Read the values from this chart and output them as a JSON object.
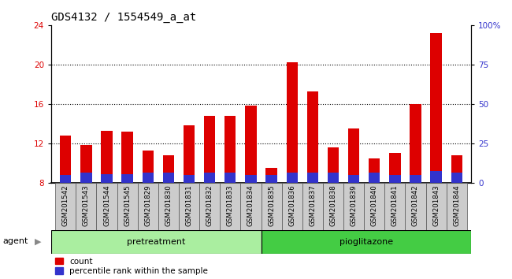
{
  "title": "GDS4132 / 1554549_a_at",
  "samples": [
    "GSM201542",
    "GSM201543",
    "GSM201544",
    "GSM201545",
    "GSM201829",
    "GSM201830",
    "GSM201831",
    "GSM201832",
    "GSM201833",
    "GSM201834",
    "GSM201835",
    "GSM201836",
    "GSM201837",
    "GSM201838",
    "GSM201839",
    "GSM201840",
    "GSM201841",
    "GSM201842",
    "GSM201843",
    "GSM201844"
  ],
  "count_values": [
    12.8,
    11.8,
    13.3,
    13.2,
    11.3,
    10.8,
    13.8,
    14.8,
    14.8,
    15.8,
    9.5,
    20.2,
    17.3,
    11.6,
    13.5,
    10.5,
    11.0,
    16.0,
    23.2,
    10.8
  ],
  "percentile_values": [
    8.8,
    9.0,
    8.9,
    8.9,
    9.0,
    9.0,
    8.8,
    9.0,
    9.0,
    8.8,
    8.8,
    9.0,
    9.0,
    9.0,
    8.8,
    9.0,
    8.8,
    8.8,
    9.2,
    9.0
  ],
  "bar_bottom": 8.0,
  "ylim_left": [
    8,
    24
  ],
  "ylim_right": [
    0,
    100
  ],
  "yticks_left": [
    8,
    12,
    16,
    20,
    24
  ],
  "yticks_right": [
    0,
    25,
    50,
    75,
    100
  ],
  "ytick_labels_right": [
    "0",
    "25",
    "50",
    "75",
    "100%"
  ],
  "count_color": "#dd0000",
  "percentile_color": "#3333cc",
  "bar_width": 0.55,
  "pretreatment_samples": 10,
  "pretreatment_label": "pretreatment",
  "pioglitazone_label": "pioglitazone",
  "agent_label": "agent",
  "legend_count": "count",
  "legend_percentile": "percentile rank within the sample",
  "grid_color": "black",
  "background_color": "#ffffff",
  "plot_bg_color": "#ffffff",
  "xticklabel_bg": "#cccccc",
  "pretreatment_bg": "#aaeea0",
  "pioglitazone_bg": "#44cc44",
  "title_fontsize": 10,
  "tick_fontsize": 7.5,
  "label_fontsize": 8
}
